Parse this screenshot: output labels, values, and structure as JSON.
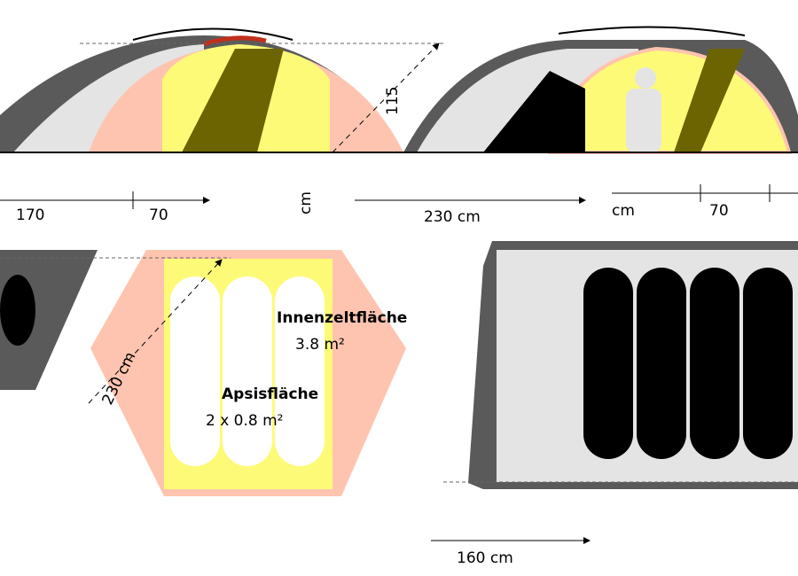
{
  "colors": {
    "fly": "#5a5a5a",
    "fly_light": "#e4e4e4",
    "vestibule": "#ffc4b0",
    "inner_tent": "#fdfa78",
    "inner_shadow": "#6b6400",
    "pole": "#c0301c",
    "sleeper": "#ffffff",
    "floor_dark": "#000000"
  },
  "front_view": {
    "height_label": "115",
    "height_unit": "cm",
    "width_left": "170",
    "width_center": "70"
  },
  "side_view": {
    "length_label": "230 cm",
    "unit_label": "cm",
    "width_right": "70"
  },
  "floor_plan": {
    "length_label": "230 cm",
    "inner_area_title": "Innenzeltfläche",
    "inner_area_value": "3.8 m²",
    "vestibule_title": "Apsisfläche",
    "vestibule_value": "2 x 0.8 m²"
  },
  "footprint": {
    "width_label": "160 cm"
  }
}
